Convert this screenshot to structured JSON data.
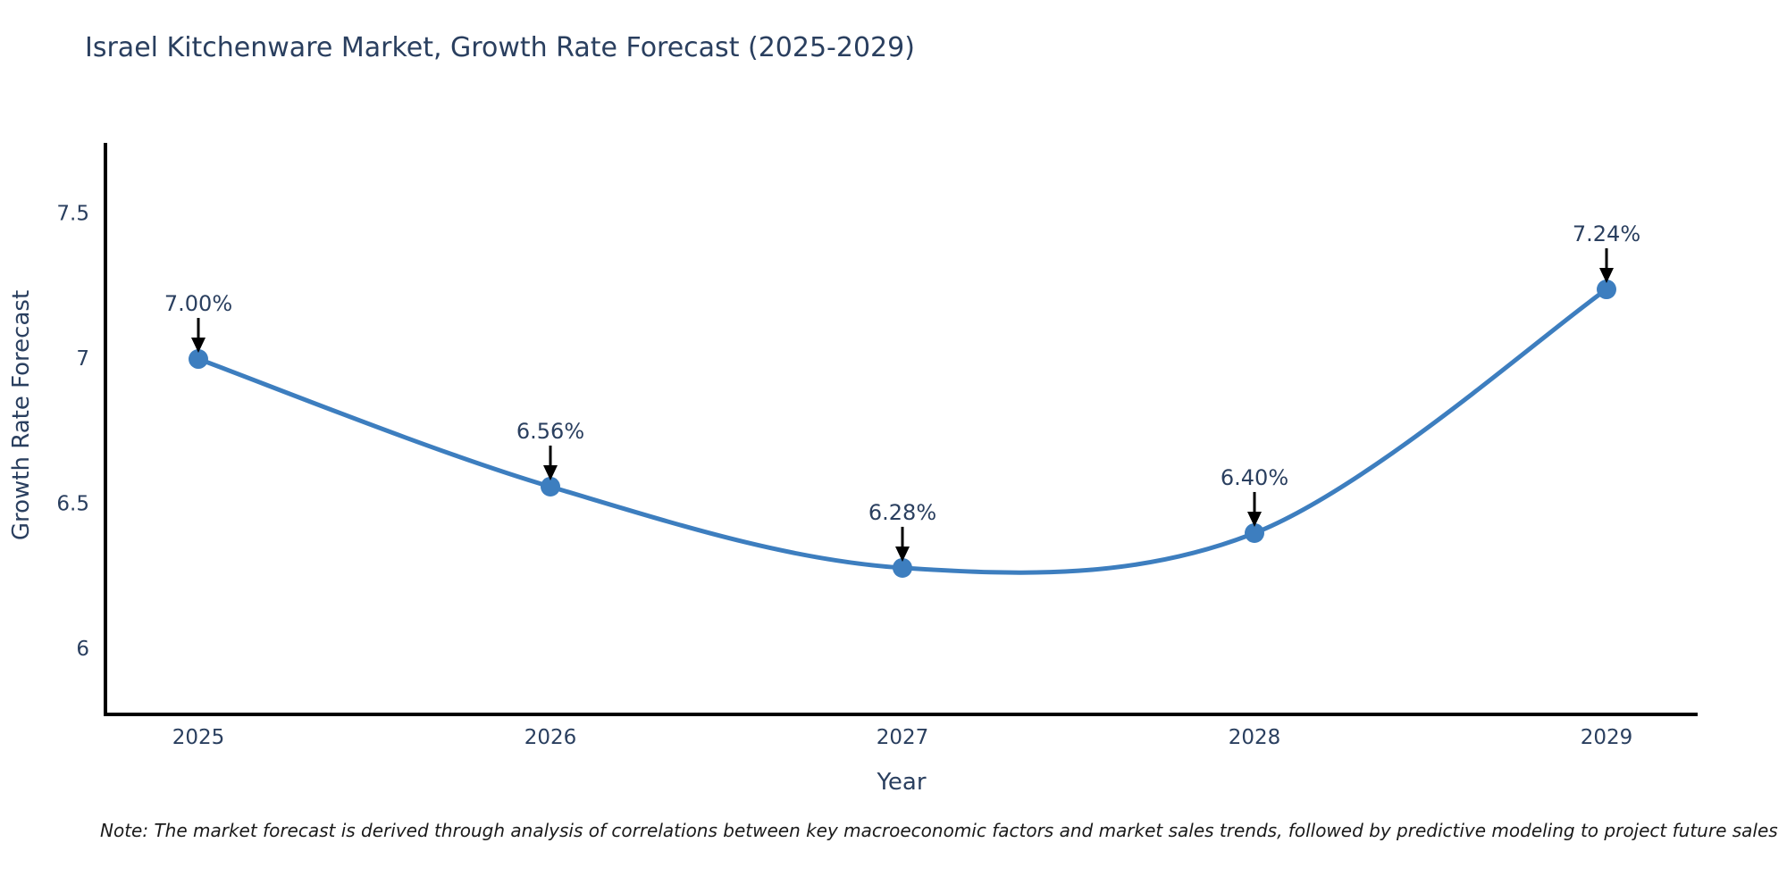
{
  "title": "Israel Kitchenware Market, Growth Rate Forecast (2025-2029)",
  "note": "Note: The market forecast is derived through analysis of correlations between key macroeconomic factors and market sales trends, followed by predictive modeling to project future sales",
  "chart_data": {
    "type": "line",
    "title": "Israel Kitchenware Market, Growth Rate Forecast (2025-2029)",
    "x": [
      2025,
      2026,
      2027,
      2028,
      2029
    ],
    "categories": [
      "2025",
      "2026",
      "2027",
      "2028",
      "2029"
    ],
    "series": [
      {
        "name": "Growth Rate Forecast",
        "values": [
          7.0,
          6.56,
          6.28,
          6.4,
          7.24
        ]
      }
    ],
    "point_labels": [
      "7.00%",
      "6.56%",
      "6.28%",
      "6.40%",
      "7.24%"
    ],
    "xlabel": "Year",
    "ylabel": "Growth Rate Forecast",
    "yticks": [
      6,
      6.5,
      7,
      7.5
    ],
    "ytick_labels": [
      "6",
      "6.5",
      "7",
      "7.5"
    ],
    "ylim": [
      5.775,
      7.745
    ],
    "line_shape": "spline",
    "grid": false,
    "legend": false,
    "annotations_have_arrows": true,
    "colors": {
      "line": "#3d7ebf",
      "marker": "#3d7ebf",
      "annotation_arrow": "#000000",
      "text": "#2a3f5f",
      "axis": "#000000"
    }
  }
}
